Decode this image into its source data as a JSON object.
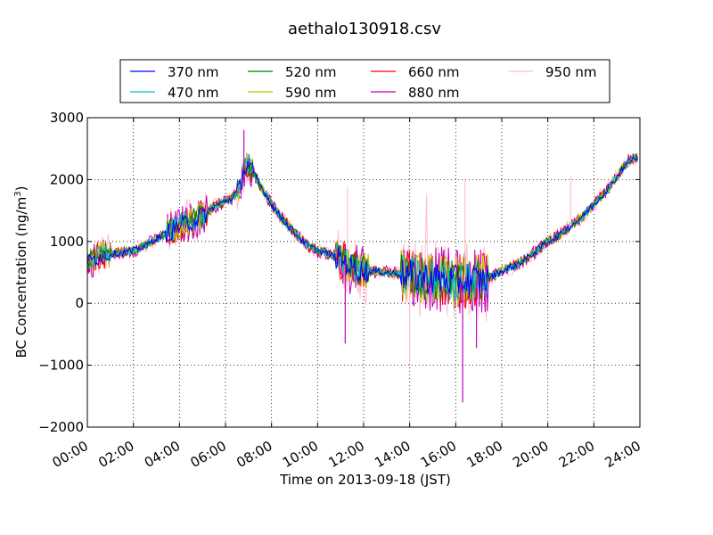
{
  "chart_data": {
    "type": "line",
    "title": "aethalo130918.csv",
    "xlabel": "Time on 2013-09-18 (JST)",
    "ylabel_main": "BC Concentration (ng/m",
    "ylabel_sup": "3",
    "ylabel_close": ")",
    "x_unit": "hour of day (JST)",
    "xlim": [
      0,
      24
    ],
    "ylim": [
      -2000,
      3000
    ],
    "grid": true,
    "legend_location": "top, outside plot",
    "xticks": [
      0,
      2,
      4,
      6,
      8,
      10,
      12,
      14,
      16,
      18,
      20,
      22,
      24
    ],
    "xtick_labels": [
      "00:00",
      "02:00",
      "04:00",
      "06:00",
      "08:00",
      "10:00",
      "12:00",
      "14:00",
      "16:00",
      "18:00",
      "20:00",
      "22:00",
      "24:00"
    ],
    "yticks": [
      -2000,
      -1000,
      0,
      1000,
      2000,
      3000
    ],
    "ytick_labels": [
      "−2000",
      "−1000",
      "0",
      "1000",
      "2000",
      "3000"
    ],
    "baseline": {
      "x": [
        0,
        0.3,
        0.6,
        1.0,
        1.5,
        2.0,
        2.5,
        3.0,
        3.5,
        4.0,
        4.5,
        5.0,
        5.5,
        6.0,
        6.3,
        6.6,
        6.8,
        7.0,
        7.3,
        7.6,
        8.0,
        8.5,
        9.0,
        9.5,
        10.0,
        10.5,
        11.0,
        11.5,
        12.0,
        12.5,
        13.0,
        13.5,
        14.0,
        14.5,
        15.0,
        15.5,
        16.0,
        16.5,
        17.0,
        17.5,
        18.0,
        18.5,
        19.0,
        19.5,
        20.0,
        20.5,
        21.0,
        21.5,
        22.0,
        22.5,
        23.0,
        23.5,
        23.9
      ],
      "y": [
        650,
        720,
        780,
        800,
        820,
        850,
        930,
        1050,
        1150,
        1250,
        1320,
        1420,
        1560,
        1650,
        1700,
        1850,
        2150,
        2250,
        2050,
        1850,
        1600,
        1350,
        1150,
        950,
        850,
        800,
        720,
        580,
        520,
        520,
        500,
        480,
        440,
        420,
        400,
        380,
        350,
        360,
        370,
        420,
        520,
        600,
        700,
        850,
        1000,
        1100,
        1250,
        1400,
        1600,
        1800,
        2050,
        2300,
        2350
      ]
    },
    "series": [
      {
        "name": "370 nm",
        "color": "#0000ff",
        "noise": 90
      },
      {
        "name": "470 nm",
        "color": "#00bfbf",
        "noise": 110
      },
      {
        "name": "520 nm",
        "color": "#008000",
        "noise": 120
      },
      {
        "name": "590 nm",
        "color": "#bfbf00",
        "noise": 140
      },
      {
        "name": "660 nm",
        "color": "#ff0000",
        "noise": 150
      },
      {
        "name": "880 nm",
        "color": "#bf00bf",
        "noise": 180
      },
      {
        "name": "950 nm",
        "color": "#ffc0cb",
        "noise": 220
      }
    ],
    "annotations_extremes": [
      {
        "x": 6.8,
        "y": 2800
      },
      {
        "x": 11.3,
        "y": 1880
      },
      {
        "x": 11.2,
        "y": -650
      },
      {
        "x": 14.0,
        "y": -950
      },
      {
        "x": 16.3,
        "y": -1600
      },
      {
        "x": 16.4,
        "y": 2000
      },
      {
        "x": 16.9,
        "y": -720
      },
      {
        "x": 21.0,
        "y": 2050
      }
    ]
  }
}
